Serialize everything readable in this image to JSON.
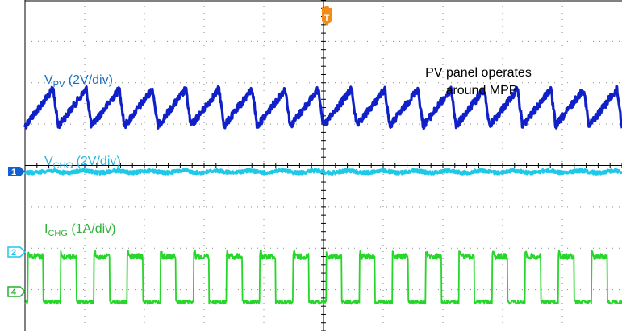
{
  "chart_data": {
    "type": "line",
    "title": "",
    "xlabel": "",
    "ylabel": "",
    "grid": true,
    "annotation": [
      "PV panel operates",
      "around MPP"
    ],
    "channel_markers": [
      "1",
      "2",
      "4"
    ],
    "trigger_marker": "T",
    "divisions": {
      "x": 10,
      "y": 8
    },
    "cycles_on_screen": 18,
    "series": [
      {
        "label_main": "V",
        "label_sub": "PV",
        "label_scale": " (2V/div)",
        "color": "#1020c8",
        "label_color": "#1a6fc4",
        "waveform": "sawtooth",
        "center_div": 2.6,
        "ripple_div": 0.45
      },
      {
        "label_main": "V",
        "label_sub": "CHG",
        "label_scale": " (2V/div)",
        "color": "#1ec8e6",
        "label_color": "#28b4dc",
        "waveform": "flat",
        "center_div": 4.15,
        "ripple_div": 0.05
      },
      {
        "label_main": "I",
        "label_sub": "CHG",
        "label_scale": " (1A/div)",
        "color": "#26d62a",
        "label_color": "#2fb13a",
        "waveform": "square",
        "high_div": 6.2,
        "low_div": 7.3
      }
    ]
  }
}
